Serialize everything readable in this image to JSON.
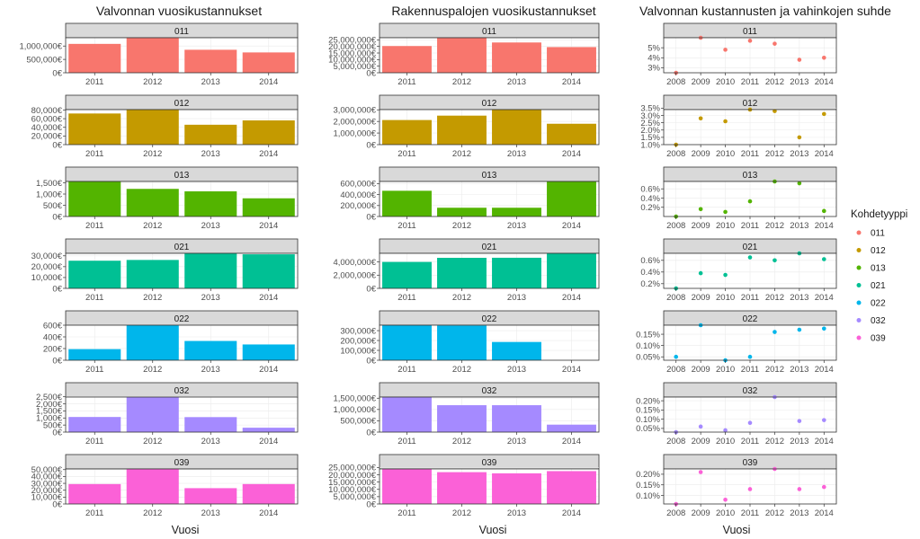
{
  "chart_data": {
    "type": "bar",
    "column_titles": [
      "Valvonnan vuosikustannukset",
      "Rakennuspalojen vuosikustannukset",
      "Valvonnan kustannusten ja vahinkojen suhde"
    ],
    "xlabel": "Vuosi",
    "legend": {
      "title": "Kohdetyyppi",
      "position": "right",
      "items": [
        "011",
        "012",
        "013",
        "021",
        "022",
        "032",
        "039"
      ]
    },
    "grid": true,
    "series_colors": {
      "011": "#F8766D",
      "012": "#C49A00",
      "013": "#53B400",
      "021": "#00C094",
      "022": "#00B6EB",
      "032": "#A58AFF",
      "039": "#FB61D7"
    },
    "panels": [
      {
        "column": "Valvonnan vuosikustannukset",
        "kind": "bar",
        "x": [
          "2011",
          "2012",
          "2013",
          "2014"
        ],
        "facets": [
          {
            "name": "011",
            "values": [
              1080000,
              1310000,
              860000,
              760000
            ],
            "ylim": [
              0,
              1310000
            ],
            "ticks": [
              {
                "v": 0,
                "label": "0€"
              },
              {
                "v": 500000,
                "label": "500,000€"
              },
              {
                "v": 1000000,
                "label": "1,000,000€"
              }
            ]
          },
          {
            "name": "012",
            "values": [
              72000,
              81000,
              46000,
              56000
            ],
            "ylim": [
              0,
              81000
            ],
            "ticks": [
              {
                "v": 0,
                "label": "0€"
              },
              {
                "v": 20000,
                "label": "20,000€"
              },
              {
                "v": 40000,
                "label": "40,000€"
              },
              {
                "v": 60000,
                "label": "60,000€"
              },
              {
                "v": 80000,
                "label": "80,000€"
              }
            ]
          },
          {
            "name": "013",
            "values": [
              1560,
              1230,
              1120,
              810
            ],
            "ylim": [
              0,
              1560
            ],
            "ticks": [
              {
                "v": 0,
                "label": "0€"
              },
              {
                "v": 500,
                "label": "500€"
              },
              {
                "v": 1000,
                "label": "1,000€"
              },
              {
                "v": 1500,
                "label": "1,500€"
              }
            ]
          },
          {
            "name": "021",
            "values": [
              25500,
              26200,
              32300,
              31400
            ],
            "ylim": [
              0,
              32300
            ],
            "ticks": [
              {
                "v": 0,
                "label": "0€"
              },
              {
                "v": 10000,
                "label": "10,000€"
              },
              {
                "v": 20000,
                "label": "20,000€"
              },
              {
                "v": 30000,
                "label": "30,000€"
              }
            ]
          },
          {
            "name": "022",
            "values": [
              190,
              600,
              330,
              270
            ],
            "ylim": [
              0,
              600
            ],
            "ticks": [
              {
                "v": 0,
                "label": "0€"
              },
              {
                "v": 200,
                "label": "200€"
              },
              {
                "v": 400,
                "label": "400€"
              },
              {
                "v": 600,
                "label": "600€"
              }
            ]
          },
          {
            "name": "032",
            "values": [
              1070,
              2480,
              1060,
              310
            ],
            "ylim": [
              0,
              2480
            ],
            "ticks": [
              {
                "v": 0,
                "label": "0€"
              },
              {
                "v": 500,
                "label": "500€"
              },
              {
                "v": 1000,
                "label": "1,000€"
              },
              {
                "v": 1500,
                "label": "1,500€"
              },
              {
                "v": 2000,
                "label": "2,000€"
              },
              {
                "v": 2500,
                "label": "2,500€"
              }
            ]
          },
          {
            "name": "039",
            "values": [
              29000,
              51000,
              23000,
              29000
            ],
            "ylim": [
              0,
              51000
            ],
            "ticks": [
              {
                "v": 0,
                "label": "0€"
              },
              {
                "v": 10000,
                "label": "10,000€"
              },
              {
                "v": 20000,
                "label": "20,000€"
              },
              {
                "v": 30000,
                "label": "30,000€"
              },
              {
                "v": 40000,
                "label": "40,000€"
              },
              {
                "v": 50000,
                "label": "50,000€"
              }
            ]
          }
        ]
      },
      {
        "column": "Rakennuspalojen vuosikustannukset",
        "kind": "bar",
        "x": [
          "2011",
          "2012",
          "2013",
          "2014"
        ],
        "facets": [
          {
            "name": "011",
            "values": [
              20300000,
              26600000,
              23000000,
              19500000
            ],
            "ylim": [
              0,
              26600000
            ],
            "ticks": [
              {
                "v": 0,
                "label": "0€"
              },
              {
                "v": 5000000,
                "label": "5,000,000€"
              },
              {
                "v": 10000000,
                "label": "10,000,000€"
              },
              {
                "v": 15000000,
                "label": "15,000,000€"
              },
              {
                "v": 20000000,
                "label": "20,000,000€"
              },
              {
                "v": 25000000,
                "label": "25,000,000€"
              }
            ]
          },
          {
            "name": "012",
            "values": [
              2120000,
              2500000,
              3020000,
              1800000
            ],
            "ylim": [
              0,
              3020000
            ],
            "ticks": [
              {
                "v": 0,
                "label": "0€"
              },
              {
                "v": 1000000,
                "label": "1,000,000€"
              },
              {
                "v": 2000000,
                "label": "2,000,000€"
              },
              {
                "v": 3000000,
                "label": "3,000,000€"
              }
            ]
          },
          {
            "name": "013",
            "values": [
              470000,
              160000,
              160000,
              640000
            ],
            "ylim": [
              0,
              640000
            ],
            "ticks": [
              {
                "v": 0,
                "label": "0€"
              },
              {
                "v": 200000,
                "label": "200,000€"
              },
              {
                "v": 400000,
                "label": "400,000€"
              },
              {
                "v": 600000,
                "label": "600,000€"
              }
            ]
          },
          {
            "name": "021",
            "values": [
              4000000,
              4620000,
              4630000,
              5300000
            ],
            "ylim": [
              0,
              5300000
            ],
            "ticks": [
              {
                "v": 0,
                "label": "0€"
              },
              {
                "v": 2000000,
                "label": "2,000,000€"
              },
              {
                "v": 4000000,
                "label": "4,000,000€"
              }
            ]
          },
          {
            "name": "022",
            "values": [
              355000,
              352000,
              185000,
              0
            ],
            "ylim": [
              0,
              355000
            ],
            "ticks": [
              {
                "v": 0,
                "label": "0€"
              },
              {
                "v": 100000,
                "label": "100,000€"
              },
              {
                "v": 200000,
                "label": "200,000€"
              },
              {
                "v": 300000,
                "label": "300,000€"
              }
            ]
          },
          {
            "name": "032",
            "values": [
              1550000,
              1190000,
              1190000,
              330000
            ],
            "ylim": [
              0,
              1550000
            ],
            "ticks": [
              {
                "v": 0,
                "label": "0€"
              },
              {
                "v": 500000,
                "label": "500,000€"
              },
              {
                "v": 1000000,
                "label": "1,000,000€"
              },
              {
                "v": 1500000,
                "label": "1,500,000€"
              }
            ]
          },
          {
            "name": "039",
            "values": [
              24000000,
              21800000,
              21000000,
              22500000
            ],
            "ylim": [
              0,
              24000000
            ],
            "ticks": [
              {
                "v": 0,
                "label": "0€"
              },
              {
                "v": 5000000,
                "label": "5,000,000€"
              },
              {
                "v": 10000000,
                "label": "10,000,000€"
              },
              {
                "v": 15000000,
                "label": "15,000,000€"
              },
              {
                "v": 20000000,
                "label": "20,000,000€"
              },
              {
                "v": 25000000,
                "label": "25,000,000€"
              }
            ]
          }
        ]
      },
      {
        "column": "Valvonnan kustannusten ja vahinkojen suhde",
        "kind": "scatter",
        "x": [
          "2008",
          "2009",
          "2010",
          "2011",
          "2012",
          "2013",
          "2014"
        ],
        "facets": [
          {
            "name": "011",
            "values": [
              2.5,
              6.0,
              4.8,
              5.7,
              5.4,
              3.8,
              4.0
            ],
            "ylim": [
              2.5,
              6.0
            ],
            "ticks": [
              {
                "v": 3,
                "label": "3%"
              },
              {
                "v": 4,
                "label": "4%"
              },
              {
                "v": 5,
                "label": "5%"
              }
            ]
          },
          {
            "name": "012",
            "values": [
              1.0,
              2.8,
              2.6,
              3.4,
              3.3,
              1.5,
              3.1
            ],
            "ylim": [
              1.0,
              3.4
            ],
            "ticks": [
              {
                "v": 1.0,
                "label": "1.0%"
              },
              {
                "v": 1.5,
                "label": "1.5%"
              },
              {
                "v": 2.0,
                "label": "2.0%"
              },
              {
                "v": 2.5,
                "label": "2.5%"
              },
              {
                "v": 3.0,
                "label": "3.0%"
              },
              {
                "v": 3.5,
                "label": "3.5%"
              }
            ]
          },
          {
            "name": "013",
            "values": [
              0.0,
              0.16,
              0.1,
              0.33,
              0.76,
              0.72,
              0.12
            ],
            "ylim": [
              0.0,
              0.76
            ],
            "ticks": [
              {
                "v": 0.2,
                "label": "0.2%"
              },
              {
                "v": 0.4,
                "label": "0.4%"
              },
              {
                "v": 0.6,
                "label": "0.6%"
              }
            ]
          },
          {
            "name": "021",
            "values": [
              0.12,
              0.38,
              0.35,
              0.65,
              0.6,
              0.72,
              0.62
            ],
            "ylim": [
              0.12,
              0.72
            ],
            "ticks": [
              {
                "v": 0.2,
                "label": "0.2%"
              },
              {
                "v": 0.4,
                "label": "0.4%"
              },
              {
                "v": 0.6,
                "label": "0.6%"
              }
            ]
          },
          {
            "name": "022",
            "values": [
              0.05,
              0.19,
              0.035,
              0.05,
              0.16,
              0.17,
              0.175
            ],
            "ylim": [
              0.035,
              0.19
            ],
            "ticks": [
              {
                "v": 0.05,
                "label": "0.05%"
              },
              {
                "v": 0.1,
                "label": "0.10%"
              },
              {
                "v": 0.15,
                "label": "0.15%"
              }
            ]
          },
          {
            "name": "032",
            "values": [
              0.03,
              0.06,
              0.04,
              0.08,
              0.22,
              0.09,
              0.095
            ],
            "ylim": [
              0.03,
              0.22
            ],
            "ticks": [
              {
                "v": 0.05,
                "label": "0.05%"
              },
              {
                "v": 0.1,
                "label": "0.10%"
              },
              {
                "v": 0.15,
                "label": "0.15%"
              },
              {
                "v": 0.2,
                "label": "0.20%"
              }
            ]
          },
          {
            "name": "039",
            "values": [
              0.06,
              0.21,
              0.08,
              0.13,
              0.225,
              0.13,
              0.14
            ],
            "ylim": [
              0.06,
              0.225
            ],
            "ticks": [
              {
                "v": 0.1,
                "label": "0.10%"
              },
              {
                "v": 0.15,
                "label": "0.15%"
              },
              {
                "v": 0.2,
                "label": "0.20%"
              }
            ]
          }
        ]
      }
    ]
  }
}
